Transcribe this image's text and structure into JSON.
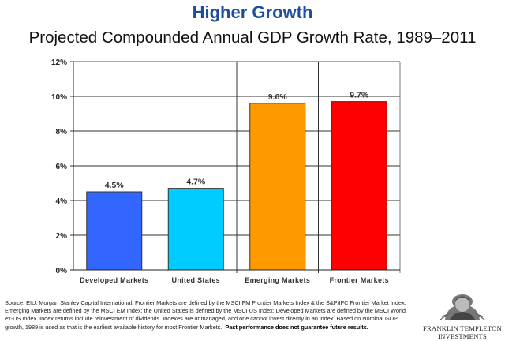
{
  "header": {
    "title": "Higher Growth",
    "subtitle": "Projected Compounded Annual GDP Growth Rate, 1989–2011"
  },
  "chart_data": {
    "type": "bar",
    "title": "Projected Compounded Annual GDP Growth Rate, 1989–2011",
    "xlabel": "",
    "ylabel": "",
    "categories": [
      "Developed Markets",
      "United States",
      "Emerging Markets",
      "Frontier Markets"
    ],
    "values": [
      4.5,
      4.7,
      9.6,
      9.7
    ],
    "data_labels": [
      "4.5%",
      "4.7%",
      "9.6%",
      "9.7%"
    ],
    "colors": [
      "#3366ff",
      "#00ccff",
      "#ff9900",
      "#ff0000"
    ],
    "ylim": [
      0,
      12
    ],
    "yticks": [
      0,
      2,
      4,
      6,
      8,
      10,
      12
    ],
    "ytick_labels": [
      "0%",
      "2%",
      "4%",
      "6%",
      "8%",
      "10%",
      "12%"
    ],
    "grid": true,
    "legend": "none"
  },
  "footnote": {
    "text": "Source: EIU; Morgan Stanley Capital International. Frontier Markets are defined by the MSCI FM Frontier Markets Index & the S&P/IFC Frontier Market Index; Emerging Markets are defined by the MSCI EM Index; the United States is defined by the MSCI US Index; Developed Markets are defined by the MSCI World ex-US Index. Index returns include reinvestment of dividends. Indexes are unmanaged, and one cannot invest directly in an index. Based on Nominal GDP growth, 1989 is used as that is the earliest available history for most Frontier Markets.",
    "bold": "Past performance does not guarantee future results."
  },
  "logo": {
    "line1": "FRANKLIN TEMPLETON",
    "line2": "INVESTMENTS"
  }
}
